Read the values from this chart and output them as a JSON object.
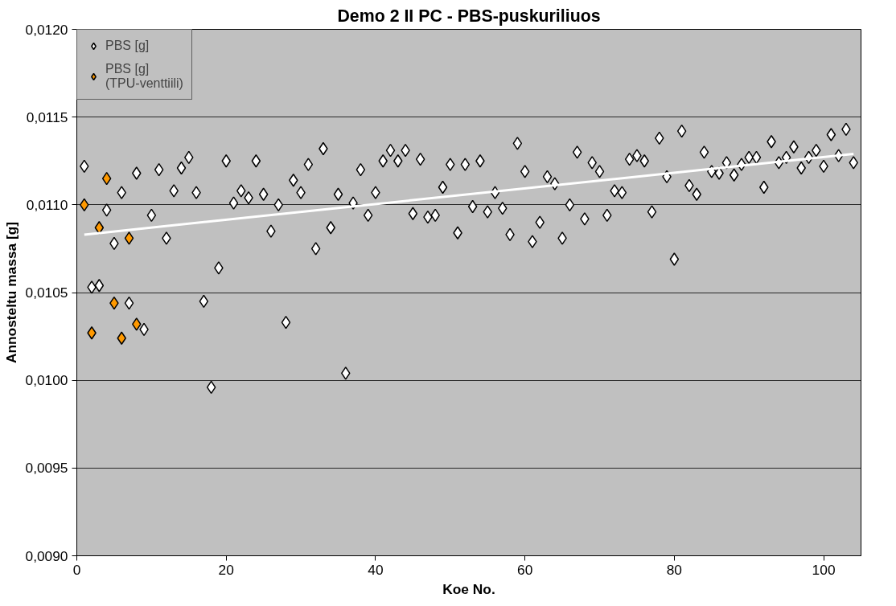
{
  "chart_data": {
    "type": "scatter",
    "title": "Demo 2 II PC - PBS-puskuriliuos",
    "xlabel": "Koe No.",
    "ylabel": "Annosteltu massa [g]",
    "xlim": [
      0,
      105
    ],
    "xticks": [
      0,
      20,
      40,
      60,
      80,
      100
    ],
    "ylim": [
      0.009,
      0.012
    ],
    "yticks": [
      {
        "value": 0.009,
        "label": "0,0090"
      },
      {
        "value": 0.0095,
        "label": "0,0095"
      },
      {
        "value": 0.01,
        "label": "0,0100"
      },
      {
        "value": 0.0105,
        "label": "0,0105"
      },
      {
        "value": 0.011,
        "label": "0,0110"
      },
      {
        "value": 0.0115,
        "label": "0,0115"
      },
      {
        "value": 0.012,
        "label": "0,0120"
      }
    ],
    "grid": "y",
    "legend": "top left",
    "marker": "diamond",
    "series": [
      {
        "name": "PBS [g]",
        "color": "#ffffff",
        "x": [
          1,
          2,
          3,
          4,
          5,
          6,
          7,
          8,
          9,
          10,
          11,
          12,
          13,
          14,
          15,
          16,
          17,
          18,
          19,
          20,
          21,
          22,
          23,
          24,
          25,
          26,
          27,
          28,
          29,
          30,
          31,
          32,
          33,
          34,
          35,
          36,
          37,
          38,
          39,
          40,
          41,
          42,
          43,
          44,
          45,
          46,
          47,
          48,
          49,
          50,
          51,
          52,
          53,
          54,
          55,
          56,
          57,
          58,
          59,
          60,
          61,
          62,
          63,
          64,
          65,
          66,
          67,
          68,
          69,
          70,
          71,
          72,
          73,
          74,
          75,
          76,
          77,
          78,
          79,
          80,
          81,
          82,
          83,
          84,
          85,
          86,
          87,
          88,
          89,
          90,
          91,
          92,
          93,
          94,
          95,
          96,
          97,
          98,
          99,
          100,
          101,
          102,
          103,
          104
        ],
        "values": [
          0.01122,
          0.01053,
          0.01054,
          0.01097,
          0.01078,
          0.01107,
          0.01044,
          0.01118,
          0.01029,
          0.01094,
          0.0112,
          0.01081,
          0.01108,
          0.01121,
          0.01127,
          0.01107,
          0.01045,
          0.00996,
          0.01064,
          0.01125,
          0.01101,
          0.01108,
          0.01104,
          0.01125,
          0.01106,
          0.01085,
          0.011,
          0.01033,
          0.01114,
          0.01107,
          0.01123,
          0.01075,
          0.01132,
          0.01087,
          0.01106,
          0.01004,
          0.01101,
          0.0112,
          0.01094,
          0.01107,
          0.01125,
          0.01131,
          0.01125,
          0.01131,
          0.01095,
          0.01126,
          0.01093,
          0.01094,
          0.0111,
          0.01123,
          0.01084,
          0.01123,
          0.01099,
          0.01125,
          0.01096,
          0.01107,
          0.01098,
          0.01083,
          0.01135,
          0.01119,
          0.01079,
          0.0109,
          0.01116,
          0.01112,
          0.01081,
          0.011,
          0.0113,
          0.01092,
          0.01124,
          0.01119,
          0.01094,
          0.01108,
          0.01107,
          0.01126,
          0.01128,
          0.01125,
          0.01096,
          0.01138,
          0.01116,
          0.01069,
          0.01142,
          0.01111,
          0.01106,
          0.0113,
          0.01119,
          0.01118,
          0.01124,
          0.01117,
          0.01123,
          0.01127,
          0.01127,
          0.0111,
          0.01136,
          0.01124,
          0.01127,
          0.01133,
          0.01121,
          0.01127,
          0.01131,
          0.01122,
          0.0114,
          0.01128,
          0.01143,
          0.01124
        ]
      },
      {
        "name": "PBS [g]\n(TPU-venttiili)",
        "color": "#ff9900",
        "x": [
          1,
          2,
          3,
          4,
          5,
          6,
          7,
          8
        ],
        "values": [
          0.011,
          0.01027,
          0.01087,
          0.01115,
          0.01044,
          0.01024,
          0.01081,
          0.01032
        ]
      },
      {
        "type": "line",
        "marker": "none",
        "color": "#ffffff",
        "x": [
          1,
          104
        ],
        "values": [
          0.01083,
          0.01129
        ]
      }
    ]
  }
}
